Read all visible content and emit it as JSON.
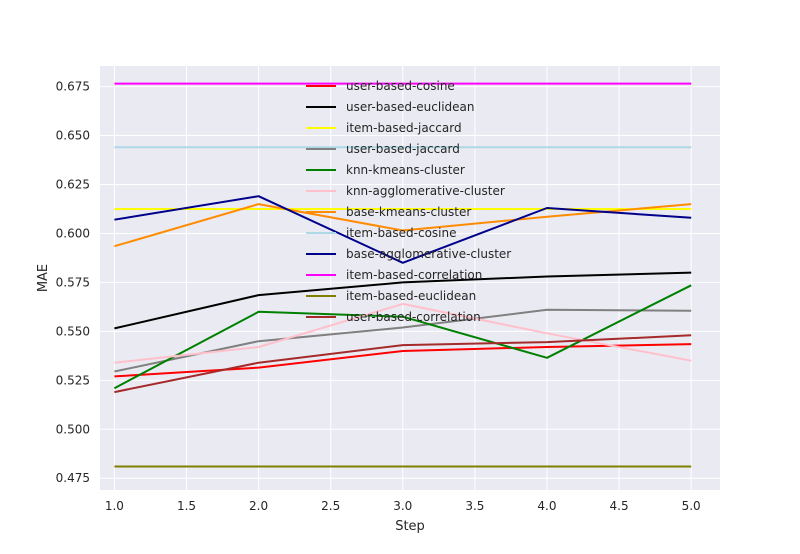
{
  "chart_data": {
    "type": "line",
    "title": "",
    "xlabel": "Step",
    "ylabel": "MAE",
    "xlim": [
      0.9,
      5.2
    ],
    "ylim": [
      0.469,
      0.6855
    ],
    "xticks": [
      1.0,
      1.5,
      2.0,
      2.5,
      3.0,
      3.5,
      4.0,
      4.5,
      5.0
    ],
    "xtick_labels": [
      "1.0",
      "1.5",
      "2.0",
      "2.5",
      "3.0",
      "3.5",
      "4.0",
      "4.5",
      "5.0"
    ],
    "yticks": [
      0.475,
      0.5,
      0.525,
      0.55,
      0.575,
      0.6,
      0.625,
      0.65,
      0.675
    ],
    "ytick_labels": [
      "0.475",
      "0.500",
      "0.525",
      "0.550",
      "0.575",
      "0.600",
      "0.625",
      "0.650",
      "0.675"
    ],
    "grid": true,
    "background": "#eaeaf2",
    "grid_color": "#ffffff",
    "legend_position": "top-center",
    "x": [
      1,
      2,
      3,
      4,
      5
    ],
    "series": [
      {
        "name": "user-based-cosine",
        "color": "#ff0000",
        "values": [
          0.527,
          0.5315,
          0.54,
          0.542,
          0.5435
        ]
      },
      {
        "name": "user-based-euclidean",
        "color": "#000000",
        "values": [
          0.5515,
          0.5685,
          0.575,
          0.578,
          0.58
        ]
      },
      {
        "name": "item-based-jaccard",
        "color": "#ffff00",
        "values": [
          0.6125,
          0.6125,
          0.6125,
          0.6125,
          0.6125
        ]
      },
      {
        "name": "user-based-jaccard",
        "color": "#808080",
        "values": [
          0.5295,
          0.545,
          0.552,
          0.561,
          0.5605
        ]
      },
      {
        "name": "knn-kmeans-cluster",
        "color": "#008000",
        "values": [
          0.521,
          0.56,
          0.5575,
          0.5365,
          0.5735
        ]
      },
      {
        "name": "knn-agglomerative-cluster",
        "color": "#ffc0cb",
        "values": [
          0.534,
          0.542,
          0.564,
          0.549,
          0.535
        ]
      },
      {
        "name": "base-kmeans-cluster",
        "color": "#ff8c00",
        "values": [
          0.5935,
          0.615,
          0.6015,
          0.6085,
          0.615
        ]
      },
      {
        "name": "item-based-cosine",
        "color": "#add8e6",
        "values": [
          0.644,
          0.644,
          0.644,
          0.644,
          0.644
        ]
      },
      {
        "name": "base-agglomerative-cluster",
        "color": "#00008b",
        "values": [
          0.607,
          0.619,
          0.585,
          0.613,
          0.608
        ]
      },
      {
        "name": "item-based-correlation",
        "color": "#ff00ff",
        "values": [
          0.6765,
          0.6765,
          0.6765,
          0.6765,
          0.6765
        ]
      },
      {
        "name": "item-based-euclidean",
        "color": "#808000",
        "values": [
          0.481,
          0.481,
          0.481,
          0.481,
          0.481
        ]
      },
      {
        "name": "user-based-correlation",
        "color": "#a52a2a",
        "values": [
          0.519,
          0.534,
          0.543,
          0.5445,
          0.548
        ]
      }
    ]
  }
}
